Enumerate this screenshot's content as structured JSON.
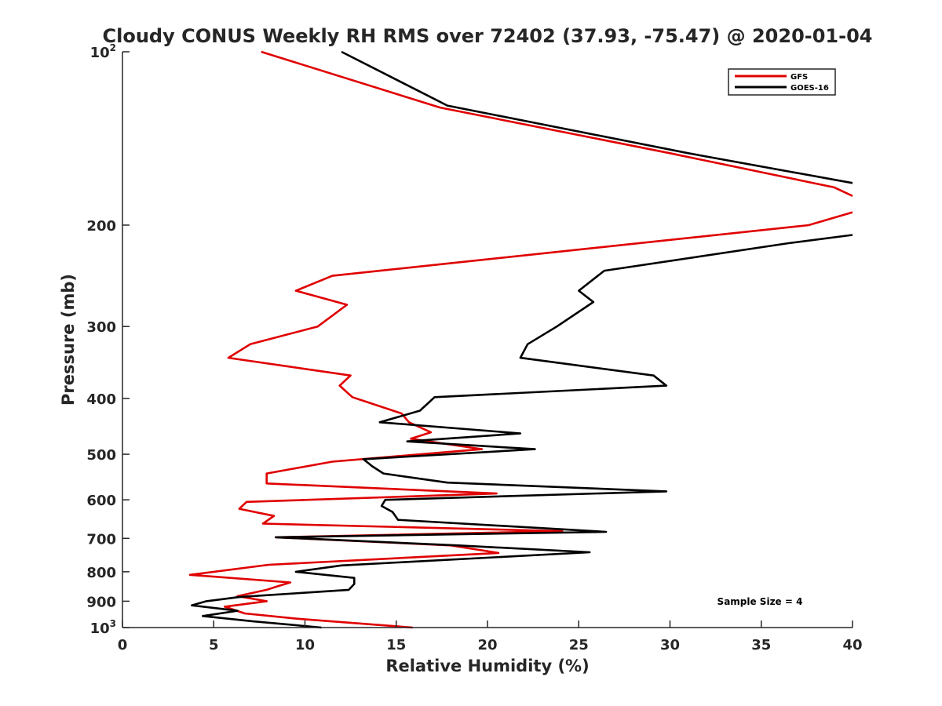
{
  "chart_data": {
    "type": "line",
    "title": "Cloudy CONUS Weekly RH RMS over 72402 (37.93, -75.47) @ 2020-01-04",
    "xlabel": "Relative Humidity (%)",
    "ylabel": "Pressure (mb)",
    "xlim": [
      0,
      40
    ],
    "ylim": [
      100,
      1000
    ],
    "y_scale": "log",
    "y_reversed": true,
    "grid": false,
    "legend_position": "top-right",
    "x_ticks": [
      "0",
      "5",
      "10",
      "15",
      "20",
      "25",
      "30",
      "35",
      "40"
    ],
    "y_ticks": [
      {
        "value": 100,
        "label": "10",
        "sup": "2"
      },
      {
        "value": 200,
        "label": "200",
        "sup": ""
      },
      {
        "value": 300,
        "label": "300",
        "sup": ""
      },
      {
        "value": 400,
        "label": "400",
        "sup": ""
      },
      {
        "value": 500,
        "label": "500",
        "sup": ""
      },
      {
        "value": 600,
        "label": "600",
        "sup": ""
      },
      {
        "value": 700,
        "label": "700",
        "sup": ""
      },
      {
        "value": 800,
        "label": "800",
        "sup": ""
      },
      {
        "value": 900,
        "label": "900",
        "sup": ""
      },
      {
        "value": 1000,
        "label": "10",
        "sup": "3"
      }
    ],
    "annotation": "Sample Size = 4",
    "series": [
      {
        "name": "GFS",
        "color": "#e00000",
        "points": [
          [
            7.6,
            100
          ],
          [
            17.4,
            125
          ],
          [
            30.0,
            150
          ],
          [
            39.0,
            172
          ],
          [
            40.5,
            178
          ],
          [
            null,
            null
          ],
          [
            40.5,
            190
          ],
          [
            37.6,
            200
          ],
          [
            11.5,
            245
          ],
          [
            9.5,
            260
          ],
          [
            12.3,
            275
          ],
          [
            10.7,
            300
          ],
          [
            7.0,
            322
          ],
          [
            5.8,
            340
          ],
          [
            12.5,
            365
          ],
          [
            11.9,
            380
          ],
          [
            12.6,
            398
          ],
          [
            15.3,
            425
          ],
          [
            15.7,
            440
          ],
          [
            16.9,
            458
          ],
          [
            15.8,
            470
          ],
          [
            19.7,
            490
          ],
          [
            11.5,
            515
          ],
          [
            7.9,
            540
          ],
          [
            7.9,
            562
          ],
          [
            20.5,
            585
          ],
          [
            6.8,
            605
          ],
          [
            6.4,
            622
          ],
          [
            8.3,
            640
          ],
          [
            7.7,
            660
          ],
          [
            24.1,
            680
          ],
          [
            8.4,
            697
          ],
          [
            18.0,
            720
          ],
          [
            20.6,
            742
          ],
          [
            8.0,
            778
          ],
          [
            3.7,
            810
          ],
          [
            9.2,
            835
          ],
          [
            8.5,
            848
          ],
          [
            7.9,
            860
          ],
          [
            6.3,
            882
          ],
          [
            7.9,
            900
          ],
          [
            5.6,
            920
          ],
          [
            6.7,
            945
          ],
          [
            9.5,
            965
          ],
          [
            15.9,
            1000
          ]
        ]
      },
      {
        "name": "GOES-16",
        "color": "#000000",
        "points": [
          [
            12.0,
            100
          ],
          [
            17.8,
            124
          ],
          [
            31.0,
            150
          ],
          [
            40.5,
            169
          ],
          [
            null,
            null
          ],
          [
            40.5,
            208
          ],
          [
            36.5,
            215
          ],
          [
            26.4,
            240
          ],
          [
            25.0,
            260
          ],
          [
            25.8,
            272
          ],
          [
            23.8,
            300
          ],
          [
            22.2,
            322
          ],
          [
            21.8,
            340
          ],
          [
            29.1,
            365
          ],
          [
            29.8,
            380
          ],
          [
            17.1,
            398
          ],
          [
            16.3,
            420
          ],
          [
            14.1,
            440
          ],
          [
            21.8,
            460
          ],
          [
            15.6,
            475
          ],
          [
            22.6,
            490
          ],
          [
            13.2,
            510
          ],
          [
            13.7,
            525
          ],
          [
            14.3,
            540
          ],
          [
            17.8,
            560
          ],
          [
            29.8,
            580
          ],
          [
            14.4,
            600
          ],
          [
            14.2,
            615
          ],
          [
            14.8,
            630
          ],
          [
            15.1,
            650
          ],
          [
            26.5,
            682
          ],
          [
            8.4,
            697
          ],
          [
            18.4,
            720
          ],
          [
            25.6,
            740
          ],
          [
            12.0,
            780
          ],
          [
            9.5,
            800
          ],
          [
            12.7,
            820
          ],
          [
            12.7,
            840
          ],
          [
            12.4,
            860
          ],
          [
            6.4,
            885
          ],
          [
            4.6,
            900
          ],
          [
            3.8,
            915
          ],
          [
            6.3,
            935
          ],
          [
            4.4,
            955
          ],
          [
            7.1,
            975
          ],
          [
            10.9,
            1000
          ]
        ]
      }
    ]
  }
}
